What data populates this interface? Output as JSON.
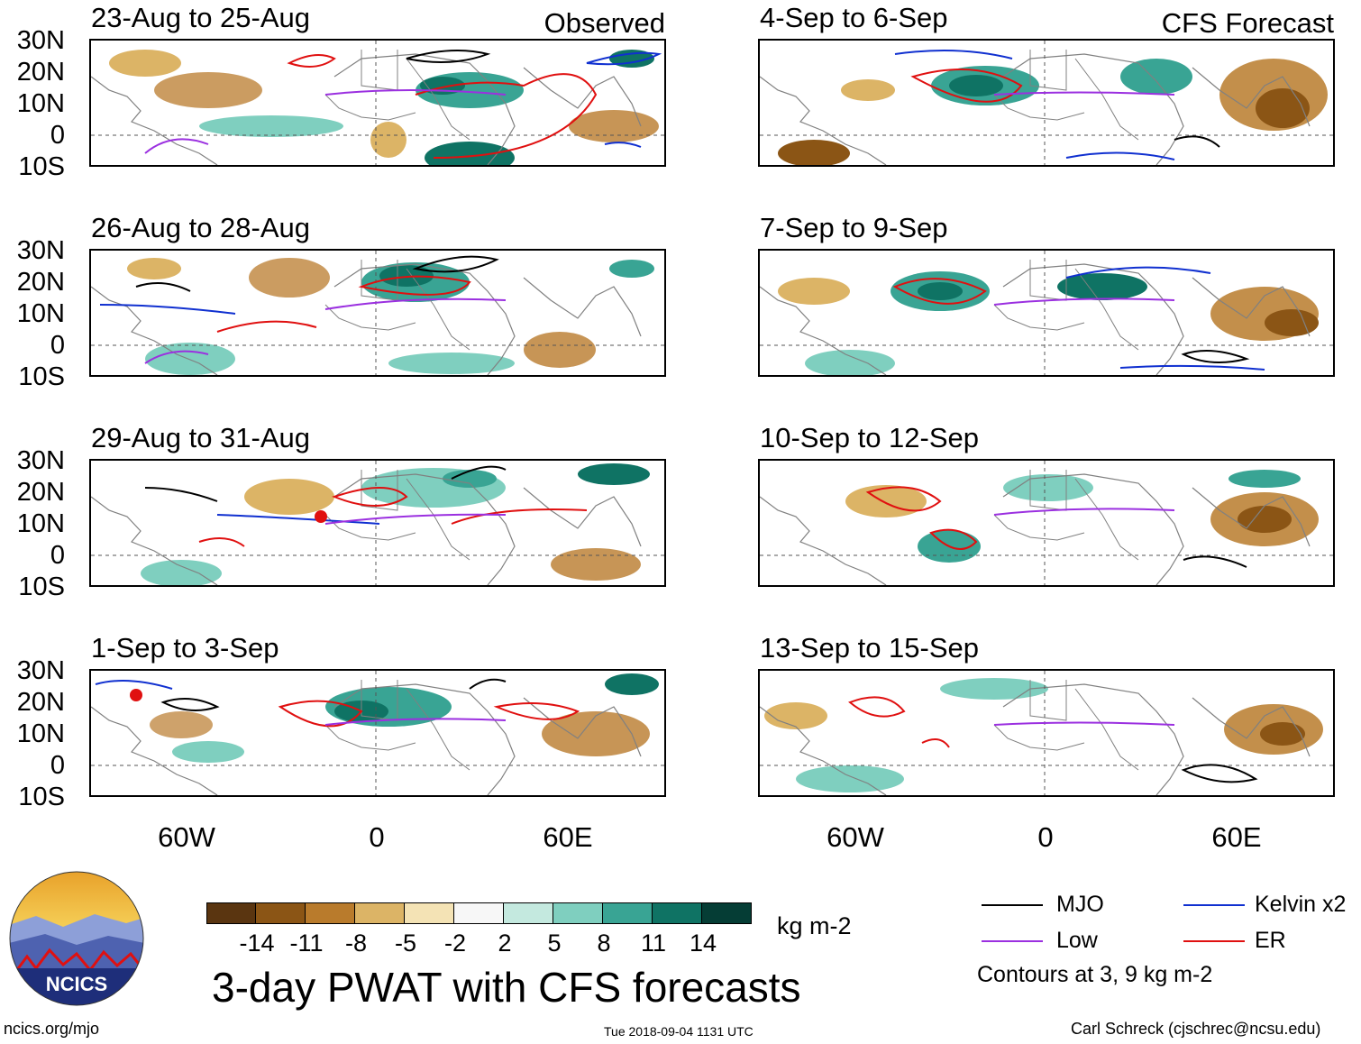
{
  "header": {
    "observed_label": "Observed",
    "forecast_label": "CFS Forecast"
  },
  "panels": {
    "left": [
      {
        "title": "23-Aug to 25-Aug"
      },
      {
        "title": "26-Aug to 28-Aug"
      },
      {
        "title": "29-Aug to 31-Aug"
      },
      {
        "title": "1-Sep to 3-Sep"
      }
    ],
    "right": [
      {
        "title": "4-Sep to 6-Sep"
      },
      {
        "title": "7-Sep to 9-Sep"
      },
      {
        "title": "10-Sep to 12-Sep"
      },
      {
        "title": "13-Sep to 15-Sep"
      }
    ]
  },
  "axes": {
    "lat_labels": [
      "30N",
      "20N",
      "10N",
      "0",
      "10S"
    ],
    "lon_labels": [
      "60W",
      "0",
      "60E"
    ]
  },
  "colorbar": {
    "colors": [
      "#5a3510",
      "#8b5515",
      "#b97b2c",
      "#dcb466",
      "#f4e3b5",
      "#f7f7f7",
      "#c4e9df",
      "#7fcfbf",
      "#39a494",
      "#0f7364",
      "#053d35"
    ],
    "labels": [
      "-14",
      "-11",
      "-8",
      "-5",
      "-2",
      "2",
      "5",
      "8",
      "11",
      "14"
    ],
    "units": "kg m-2"
  },
  "title": "3-day PWAT with CFS forecasts",
  "legend": {
    "items": [
      {
        "label": "MJO",
        "color": "#000000"
      },
      {
        "label": "Kelvin x2",
        "color": "#1030d0"
      },
      {
        "label": "Low",
        "color": "#9b30e0"
      },
      {
        "label": "ER",
        "color": "#e01010"
      }
    ],
    "note": "Contours at 3, 9 kg m-2"
  },
  "logo": {
    "text": "NCICS"
  },
  "footer": {
    "url": "ncics.org/mjo",
    "timestamp": "Tue 2018-09-04 1131 UTC",
    "credit": "Carl Schreck (cjschrec@ncsu.edu)"
  }
}
